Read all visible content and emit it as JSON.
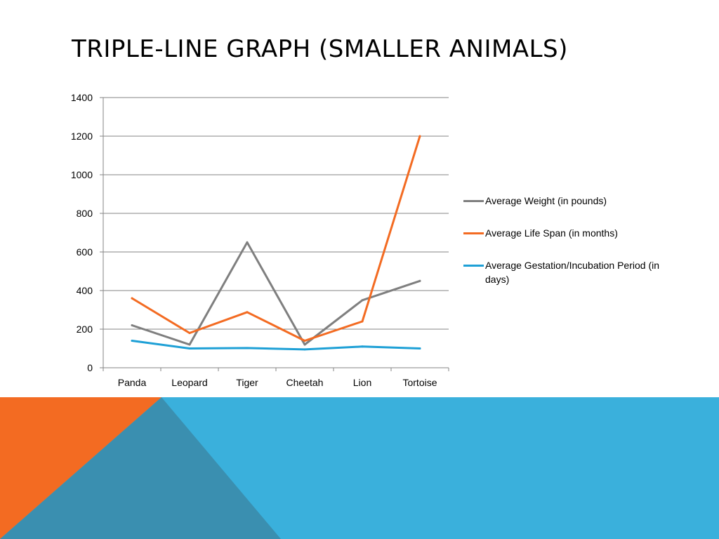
{
  "slide": {
    "title": "TRIPLE-LINE GRAPH (SMALLER ANIMALS)"
  },
  "colors": {
    "accent_orange": "#f36b22",
    "accent_blue": "#3ab0dc",
    "accent_blue_dark": "#3a8fb0",
    "gridline": "#868686"
  },
  "chart_data": {
    "type": "line",
    "title": "",
    "xlabel": "",
    "ylabel": "",
    "categories": [
      "Panda",
      "Leopard",
      "Tiger",
      "Cheetah",
      "Lion",
      "Tortoise"
    ],
    "ylim": [
      0,
      1400
    ],
    "yticks": [
      0,
      200,
      400,
      600,
      800,
      1000,
      1200,
      1400
    ],
    "grid": true,
    "legend_position": "right",
    "series": [
      {
        "name": "Average Weight (in pounds)",
        "values": [
          220,
          120,
          650,
          120,
          350,
          450
        ],
        "color": "#7f7f7f"
      },
      {
        "name": "Average Life Span (in months)",
        "values": [
          360,
          180,
          288,
          140,
          240,
          1200
        ],
        "color": "#f36b22"
      },
      {
        "name": "Average Gestation/Incubation Period (in days)",
        "values": [
          140,
          100,
          102,
          95,
          110,
          100
        ],
        "color": "#1ea0d6"
      }
    ]
  }
}
